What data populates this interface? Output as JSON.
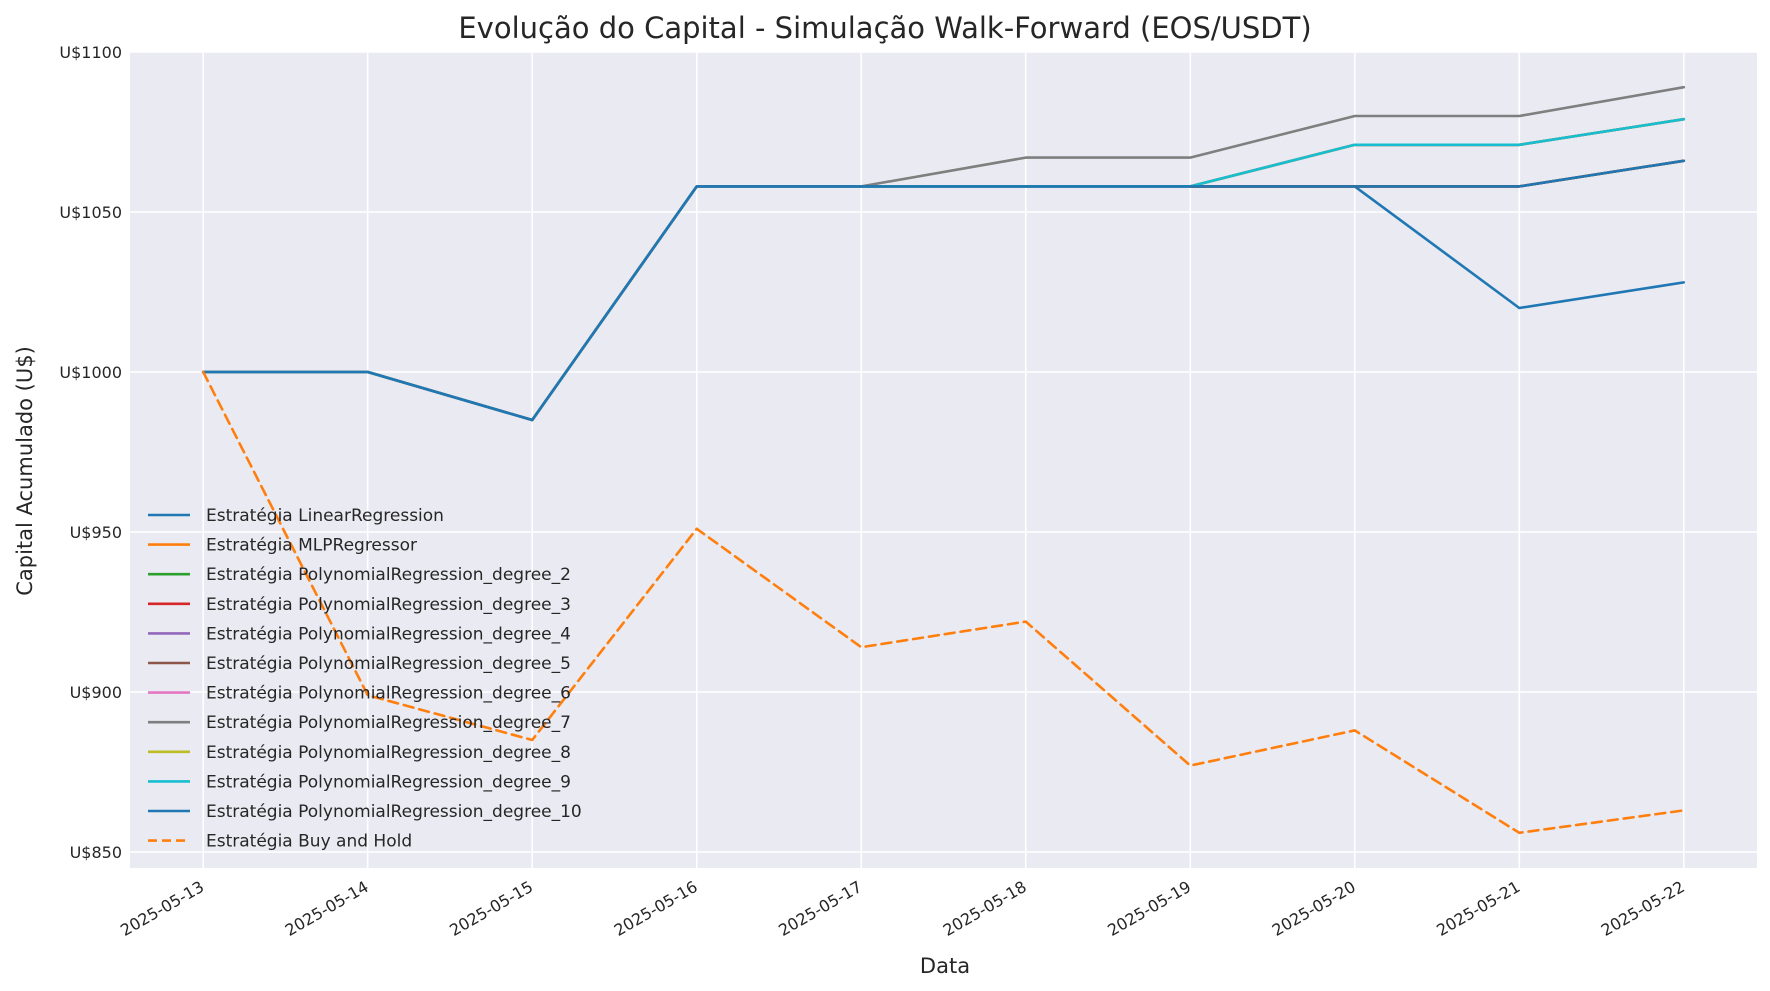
{
  "chart_data": {
    "type": "line",
    "title": "Evolução do Capital - Simulação Walk-Forward (EOS/USDT)",
    "xlabel": "Data",
    "ylabel": "Capital Acumulado (U$)",
    "x": [
      "2025-05-13",
      "2025-05-14",
      "2025-05-15",
      "2025-05-16",
      "2025-05-17",
      "2025-05-18",
      "2025-05-19",
      "2025-05-20",
      "2025-05-21",
      "2025-05-22"
    ],
    "ylim": [
      845,
      1100
    ],
    "yticks": [
      850,
      900,
      950,
      1000,
      1050,
      1100
    ],
    "ytick_labels": [
      "U$850",
      "U$900",
      "U$950",
      "U$1000",
      "U$1050",
      "U$1100"
    ],
    "grid": true,
    "legend_position": "lower-left",
    "series": [
      {
        "name": "Estratégia LinearRegression",
        "color": "#1f77b4",
        "dash": "solid",
        "values": [
          1000,
          1000,
          985,
          1058,
          1058,
          1058,
          1058,
          1058,
          1020,
          1028
        ]
      },
      {
        "name": "Estratégia MLPRegressor",
        "color": "#ff7f0e",
        "dash": "solid",
        "values": [
          1000,
          1000,
          985,
          1058,
          1058,
          1058,
          1058,
          1058,
          1058,
          1066
        ]
      },
      {
        "name": "Estratégia PolynomialRegression_degree_2",
        "color": "#2ca02c",
        "dash": "solid",
        "values": [
          1000,
          1000,
          985,
          1058,
          1058,
          1058,
          1058,
          1058,
          1058,
          1066
        ]
      },
      {
        "name": "Estratégia PolynomialRegression_degree_3",
        "color": "#d62728",
        "dash": "solid",
        "values": [
          1000,
          1000,
          985,
          1058,
          1058,
          1058,
          1058,
          1058,
          1058,
          1066
        ]
      },
      {
        "name": "Estratégia PolynomialRegression_degree_4",
        "color": "#9467bd",
        "dash": "solid",
        "values": [
          1000,
          1000,
          985,
          1058,
          1058,
          1058,
          1058,
          1071,
          1071,
          1079
        ]
      },
      {
        "name": "Estratégia PolynomialRegression_degree_5",
        "color": "#8c564b",
        "dash": "solid",
        "values": [
          1000,
          1000,
          985,
          1058,
          1058,
          1058,
          1058,
          1071,
          1071,
          1079
        ]
      },
      {
        "name": "Estratégia PolynomialRegression_degree_6",
        "color": "#e377c2",
        "dash": "solid",
        "values": [
          1000,
          1000,
          985,
          1058,
          1058,
          1058,
          1058,
          1071,
          1071,
          1079
        ]
      },
      {
        "name": "Estratégia PolynomialRegression_degree_7",
        "color": "#7f7f7f",
        "dash": "solid",
        "values": [
          1000,
          1000,
          985,
          1058,
          1058,
          1067,
          1067,
          1080,
          1080,
          1089
        ]
      },
      {
        "name": "Estratégia PolynomialRegression_degree_8",
        "color": "#bcbd22",
        "dash": "solid",
        "values": [
          1000,
          1000,
          985,
          1058,
          1058,
          1058,
          1058,
          1071,
          1071,
          1079
        ]
      },
      {
        "name": "Estratégia PolynomialRegression_degree_9",
        "color": "#17becf",
        "dash": "solid",
        "values": [
          1000,
          1000,
          985,
          1058,
          1058,
          1058,
          1058,
          1071,
          1071,
          1079
        ]
      },
      {
        "name": "Estratégia PolynomialRegression_degree_10",
        "color": "#1f77b4",
        "dash": "solid",
        "values": [
          1000,
          1000,
          985,
          1058,
          1058,
          1058,
          1058,
          1058,
          1058,
          1066
        ]
      },
      {
        "name": "Estratégia Buy and Hold",
        "color": "#ff7f0e",
        "dash": "dashed",
        "values": [
          1000,
          899,
          885,
          951,
          914,
          922,
          877,
          888,
          856,
          863
        ]
      }
    ]
  }
}
